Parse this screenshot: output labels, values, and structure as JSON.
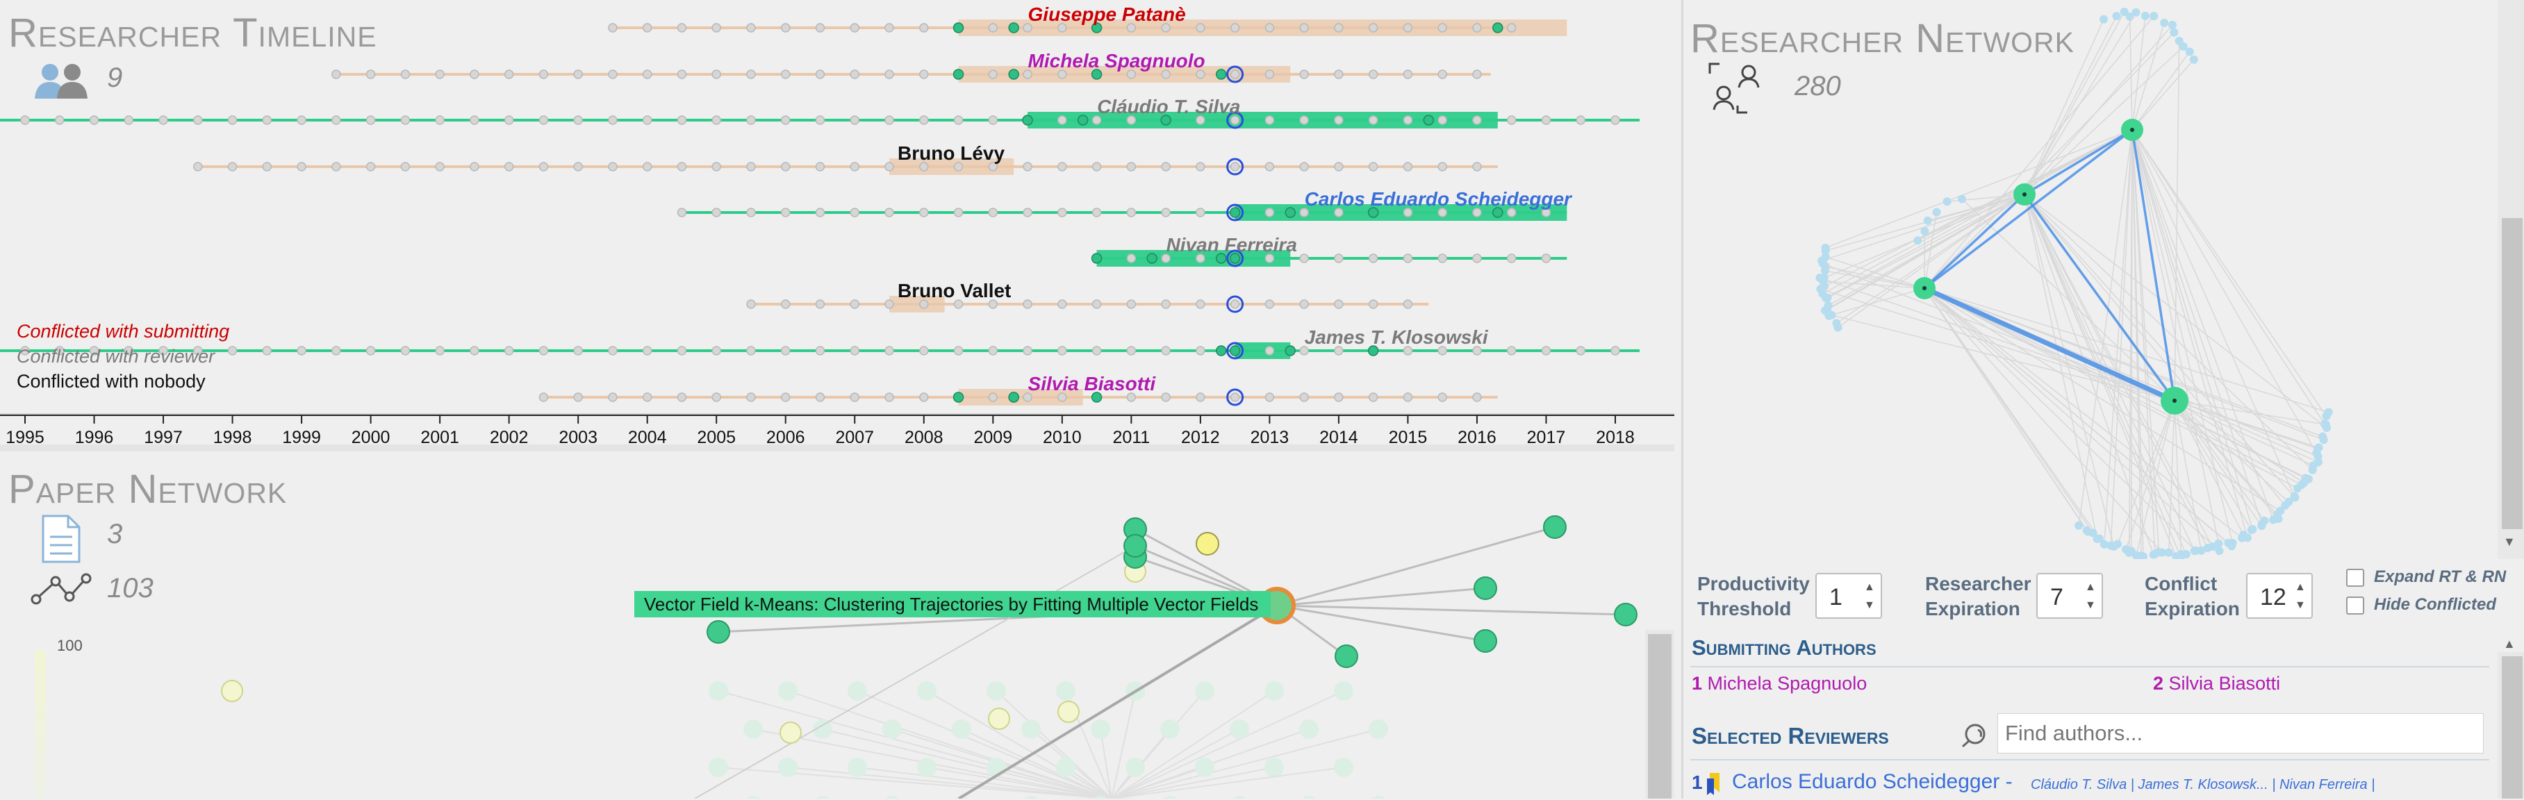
{
  "timeline": {
    "title": "Researcher Timeline",
    "researcher_count": "9",
    "years": [
      "1995",
      "1996",
      "1997",
      "1998",
      "1999",
      "2000",
      "2001",
      "2002",
      "2003",
      "2004",
      "2005",
      "2006",
      "2007",
      "2008",
      "2009",
      "2010",
      "2011",
      "2012",
      "2013",
      "2014",
      "2015",
      "2016",
      "2017",
      "2018"
    ],
    "researchers": [
      {
        "name": "Giuseppe Patanè",
        "role": "submitting",
        "start": 2003.5,
        "end": 2016.5,
        "active_start": 2008.5,
        "active_end": 2017.3
      },
      {
        "name": "Michela Spagnuolo",
        "role": "submitting",
        "start": 1999.5,
        "end": 2016.2,
        "active_start": 2008.5,
        "active_end": 2013.3
      },
      {
        "name": "Cláudio T. Silva",
        "role": "reviewer",
        "start": 1995,
        "end": 2018,
        "active_start": 2009.5,
        "active_end": 2016.3
      },
      {
        "name": "Bruno Lévy",
        "role": "nobody",
        "start": 1997.5,
        "end": 2016.3,
        "active_start": 2007.5,
        "active_end": 2009.3
      },
      {
        "name": "Carlos Eduardo Scheidegger",
        "role": "selected",
        "start": 2004.5,
        "end": 2017.3,
        "active_start": 2012.5,
        "active_end": 2017.3
      },
      {
        "name": "Nivan Ferreira",
        "role": "reviewer",
        "start": 2010.5,
        "end": 2017.3,
        "active_start": 2010.5,
        "active_end": 2013.3
      },
      {
        "name": "Bruno Vallet",
        "role": "nobody",
        "start": 2005.5,
        "end": 2015.3,
        "active_start": 2007.5,
        "active_end": 2008.3
      },
      {
        "name": "James T. Klosowski",
        "role": "reviewer",
        "start": 1995,
        "end": 2018,
        "active_start": 2012.5,
        "active_end": 2013.3
      },
      {
        "name": "Silvia Biasotti",
        "role": "submitting",
        "start": 2002.5,
        "end": 2016.3,
        "active_start": 2008.5,
        "active_end": 2010.3
      }
    ],
    "legend": {
      "submitting": "Conflicted with submitting",
      "reviewer": "Conflicted with reviewer",
      "nobody": "Conflicted with nobody"
    }
  },
  "network": {
    "title": "Researcher Network",
    "count": "280"
  },
  "papers": {
    "title": "Paper Network",
    "paper_count": "3",
    "link_count": "103",
    "scale_max": "100",
    "highlight_paper": "Vector Field k-Means: Clustering Trajectories by Fitting Multiple Vector Fields"
  },
  "controls": {
    "productivity_label_1": "Productivity",
    "productivity_label_2": "Threshold",
    "productivity_value": "1",
    "expiration_label_1": "Researcher",
    "expiration_label_2": "Expiration",
    "expiration_value": "7",
    "conflict_label_1": "Conflict",
    "conflict_label_2": "Expiration",
    "conflict_value": "12",
    "expand_label": "Expand RT & RN",
    "hide_label": "Hide Conflicted",
    "submitting_head": "Submitting Authors",
    "submitting_authors": [
      {
        "index": "1",
        "name": "Michela Spagnuolo"
      },
      {
        "index": "2",
        "name": "Silvia Biasotti"
      }
    ],
    "reviewers_head": "Selected Reviewers",
    "search_placeholder": "Find authors...",
    "reviewer_index": "1",
    "reviewer_name": "Carlos Eduardo Scheidegger -",
    "reviewer_conflicts": "Cláudio T. Silva | James T. Klosowsk... | Nivan Ferreira |"
  },
  "colors": {
    "submitting": "#cc0000",
    "submitting_alt": "#b01ab0",
    "reviewer": "#7a7a7a",
    "selected": "#3a6fd8",
    "nobody": "#111111",
    "green": "#2ecc8a",
    "tan": "#e9c7a8"
  }
}
